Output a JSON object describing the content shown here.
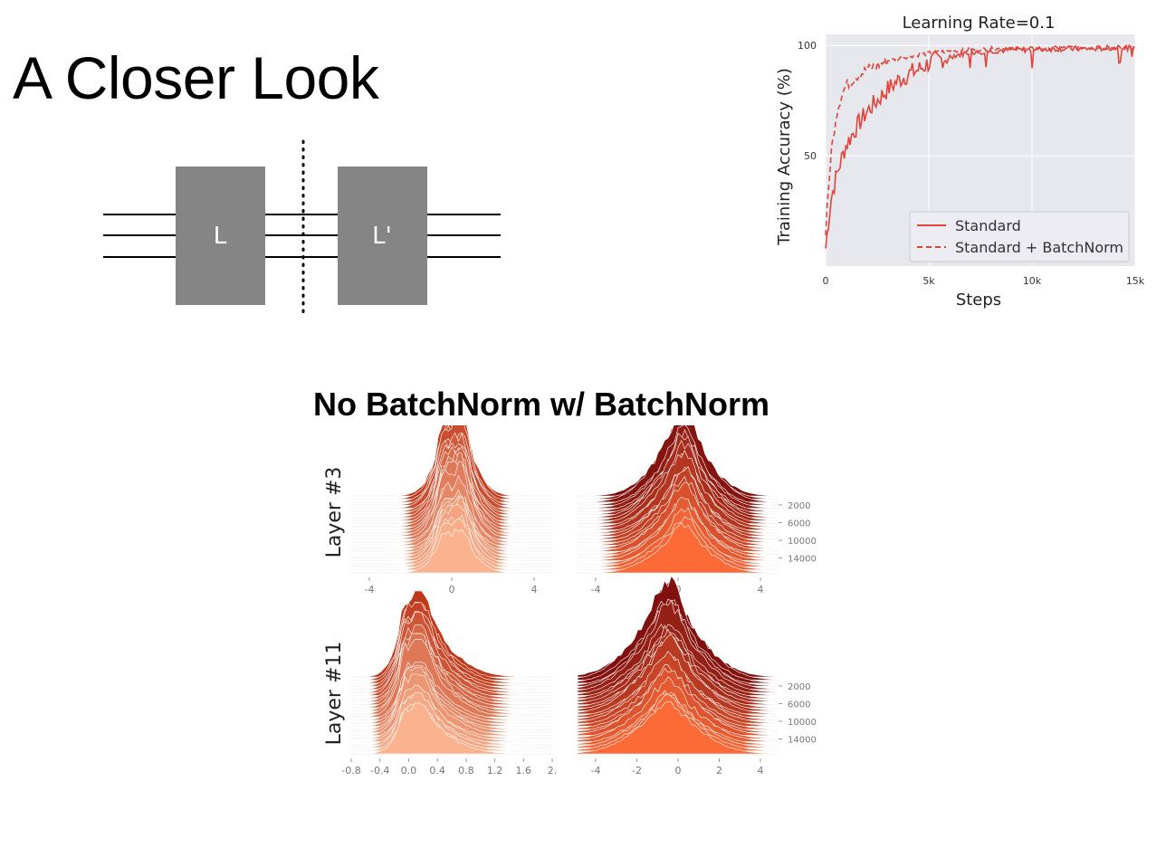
{
  "slide": {
    "title": "A Closer Look",
    "section_title": "No BatchNorm w/ BatchNorm"
  },
  "diagram": {
    "layer_a_label": "L",
    "layer_b_label": "L'",
    "block_color": "#858585"
  },
  "chart_data": [
    {
      "type": "line",
      "title": "Learning Rate=0.1",
      "xlabel": "Steps",
      "ylabel": "Training Accuracy (%)",
      "xlim": [
        0,
        15000
      ],
      "ylim": [
        0,
        105
      ],
      "x_tick_labels": [
        "0",
        "5k",
        "10k",
        "15k"
      ],
      "y_tick_labels": [
        "50",
        "100"
      ],
      "grid": true,
      "legend_position": "lower-right",
      "series": [
        {
          "name": "Standard",
          "style": "solid",
          "color": "#e0443a",
          "x": [
            0,
            250,
            500,
            750,
            1000,
            1500,
            2000,
            2500,
            3000,
            3500,
            4000,
            4500,
            5000,
            6000,
            7000,
            8000,
            9000,
            10000,
            11000,
            12000,
            13000,
            14000,
            15000
          ],
          "y": [
            8,
            30,
            40,
            48,
            55,
            63,
            70,
            75,
            80,
            84,
            87,
            89,
            92,
            95,
            97,
            97.5,
            98,
            98,
            98.5,
            98.5,
            98.5,
            99,
            99
          ]
        },
        {
          "name": "Standard + BatchNorm",
          "style": "dashed",
          "color": "#e0443a",
          "x": [
            0,
            250,
            500,
            750,
            1000,
            1500,
            2000,
            2500,
            3000,
            3500,
            4000,
            5000,
            6000,
            7000,
            8000,
            10000,
            12000,
            15000
          ],
          "y": [
            15,
            50,
            68,
            77,
            82,
            86,
            89,
            91,
            93,
            94,
            95,
            96.5,
            97.5,
            98,
            98.5,
            98.5,
            99,
            99
          ]
        }
      ]
    },
    {
      "type": "area",
      "panel": "Layer #3 / No BatchNorm",
      "ylabel": "Layer #3",
      "x_tick_labels": [
        "-4",
        "0",
        "4"
      ],
      "xlim": [
        -5,
        4.5
      ],
      "peak_center": 0,
      "spread": 0.7
    },
    {
      "type": "area",
      "panel": "Layer #3 / w/ BatchNorm",
      "x_tick_labels": [
        "-4",
        "0",
        "4"
      ],
      "y_tick_labels": [
        "2000",
        "6000",
        "10000",
        "14000"
      ],
      "xlim": [
        -5,
        4.5
      ],
      "peak_center": 0,
      "spread": 1.1
    },
    {
      "type": "area",
      "panel": "Layer #11 / No BatchNorm",
      "ylabel": "Layer #11",
      "x_tick_labels": [
        "-0.8",
        "-0.4",
        "0.0",
        "0.4",
        "0.8",
        "1.2",
        "1.6",
        "2."
      ],
      "xlim": [
        -0.9,
        2.0
      ],
      "peak_center": 0.0,
      "spread": 0.22
    },
    {
      "type": "area",
      "panel": "Layer #11 / w/ BatchNorm",
      "x_tick_labels": [
        "-4",
        "-2",
        "0",
        "2",
        "4"
      ],
      "y_tick_labels": [
        "2000",
        "6000",
        "10000",
        "14000"
      ],
      "xlim": [
        -4,
        4
      ],
      "peak_center": 0,
      "spread": 1.4
    }
  ]
}
